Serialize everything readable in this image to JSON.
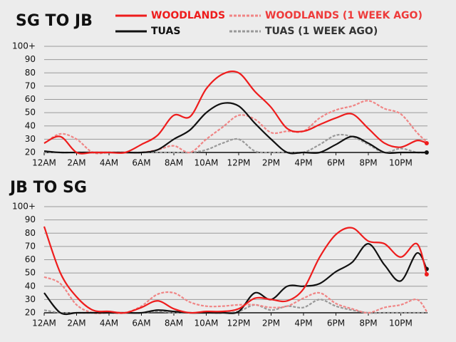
{
  "chart_data": [
    {
      "type": "line",
      "title": "SG TO JB",
      "x": [
        0,
        1,
        2,
        3,
        4,
        5,
        6,
        7,
        8,
        9,
        10,
        11,
        12,
        13,
        14,
        15,
        16,
        17,
        18,
        19,
        20,
        21,
        22,
        23,
        23.6
      ],
      "xlim": [
        0,
        23.65
      ],
      "xticks": [
        {
          "value": 0,
          "label": "12AM"
        },
        {
          "value": 2,
          "label": "2AM"
        },
        {
          "value": 4,
          "label": "4AM"
        },
        {
          "value": 6,
          "label": "6AM"
        },
        {
          "value": 8,
          "label": "8AM"
        },
        {
          "value": 10,
          "label": "10AM"
        },
        {
          "value": 12,
          "label": "12PM"
        },
        {
          "value": 14,
          "label": "2PM"
        },
        {
          "value": 16,
          "label": "4PM"
        },
        {
          "value": 18,
          "label": "6PM"
        },
        {
          "value": 20,
          "label": "8PM"
        },
        {
          "value": 22,
          "label": "10PM"
        }
      ],
      "ylim": [
        20,
        100
      ],
      "yticks": [
        20,
        30,
        40,
        50,
        60,
        70,
        80,
        90,
        {
          "value": 100,
          "label": "100+"
        }
      ],
      "grid": true,
      "series": [
        {
          "name": "WOODLANDS",
          "color": "#ee1c1c",
          "style": "solid",
          "end_dot": true,
          "values": [
            27,
            32,
            20,
            20,
            20,
            20,
            26,
            33,
            48,
            47,
            68,
            79,
            80,
            66,
            54,
            38,
            36,
            41,
            46,
            49,
            38,
            27,
            24,
            29,
            27
          ]
        },
        {
          "name": "WOODLANDS (1 WEEK AGO)",
          "color": "#f08585",
          "style": "dashed",
          "end_dot": false,
          "values": [
            27,
            34,
            30,
            20,
            20,
            20,
            20,
            22,
            25,
            20,
            30,
            39,
            48,
            45,
            35,
            36,
            36,
            46,
            52,
            55,
            59,
            53,
            49,
            35,
            28
          ]
        },
        {
          "name": "TUAS",
          "color": "#111111",
          "style": "solid",
          "end_dot": true,
          "values": [
            21,
            20,
            20,
            20,
            20,
            20,
            20,
            22,
            30,
            37,
            50,
            57,
            55,
            42,
            30,
            20,
            20,
            20,
            26,
            32,
            27,
            20,
            20,
            20,
            20
          ]
        },
        {
          "name": "TUAS (1 WEEK AGO)",
          "color": "#999999",
          "style": "dashed",
          "end_dot": false,
          "values": [
            20,
            20,
            20,
            20,
            20,
            20,
            20,
            20,
            20,
            20,
            22,
            27,
            30,
            21,
            20,
            20,
            20,
            26,
            33,
            32,
            26,
            20,
            23,
            20,
            20
          ]
        }
      ]
    },
    {
      "type": "line",
      "title": "JB TO SG",
      "x": [
        0,
        1,
        2,
        3,
        4,
        5,
        6,
        7,
        8,
        9,
        10,
        11,
        12,
        13,
        14,
        15,
        16,
        17,
        18,
        19,
        20,
        21,
        22,
        23,
        23.6
      ],
      "xlim": [
        0,
        23.65
      ],
      "xticks": [
        {
          "value": 0,
          "label": "12AM"
        },
        {
          "value": 2,
          "label": "2AM"
        },
        {
          "value": 4,
          "label": "4AM"
        },
        {
          "value": 6,
          "label": "6AM"
        },
        {
          "value": 8,
          "label": "8AM"
        },
        {
          "value": 10,
          "label": "10AM"
        },
        {
          "value": 12,
          "label": "12PM"
        },
        {
          "value": 14,
          "label": "2PM"
        },
        {
          "value": 16,
          "label": "4PM"
        },
        {
          "value": 18,
          "label": "6PM"
        },
        {
          "value": 20,
          "label": "8PM"
        },
        {
          "value": 22,
          "label": "10PM"
        }
      ],
      "ylim": [
        20,
        100
      ],
      "yticks": [
        20,
        30,
        40,
        50,
        60,
        70,
        80,
        90,
        {
          "value": 100,
          "label": "100+"
        }
      ],
      "grid": true,
      "series": [
        {
          "color": "#ee1c1c",
          "style": "solid",
          "end_dot": true,
          "values": [
            85,
            50,
            32,
            22,
            21,
            20,
            24,
            29,
            23,
            20,
            21,
            21,
            23,
            31,
            30,
            29,
            38,
            62,
            79,
            84,
            74,
            72,
            62,
            72,
            49
          ]
        },
        {
          "color": "#f08585",
          "style": "dashed",
          "end_dot": false,
          "values": [
            47,
            42,
            26,
            20,
            20,
            20,
            25,
            34,
            35,
            28,
            25,
            25,
            26,
            26,
            24,
            25,
            31,
            35,
            27,
            23,
            20,
            24,
            26,
            30,
            21
          ]
        },
        {
          "color": "#111111",
          "style": "solid",
          "end_dot": true,
          "values": [
            35,
            20,
            20,
            20,
            20,
            20,
            20,
            22,
            21,
            20,
            20,
            20,
            21,
            35,
            30,
            40,
            40,
            42,
            51,
            58,
            72,
            56,
            44,
            65,
            53
          ]
        },
        {
          "color": "#999999",
          "style": "dashed",
          "end_dot": false,
          "values": [
            22,
            20,
            20,
            20,
            20,
            20,
            20,
            21,
            20,
            20,
            20,
            20,
            21,
            26,
            22,
            25,
            24,
            30,
            25,
            22,
            20,
            20,
            20,
            20,
            20
          ]
        }
      ]
    }
  ]
}
